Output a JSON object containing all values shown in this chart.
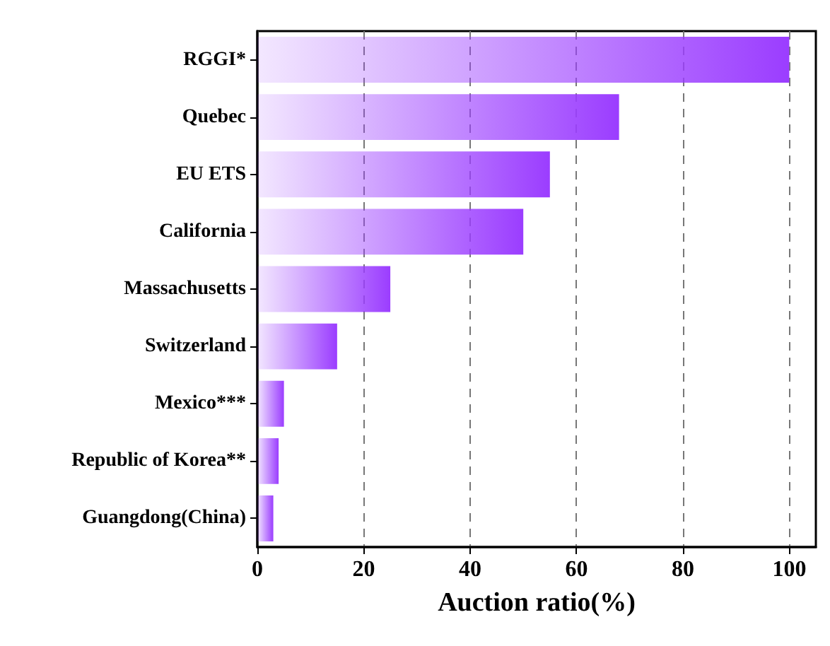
{
  "chart_data": {
    "type": "bar",
    "orientation": "horizontal",
    "xlabel": "Auction ratio(%)",
    "categories": [
      "RGGI*",
      "Quebec",
      "EU ETS",
      "California",
      "Massachusetts",
      "Switzerland",
      "Mexico***",
      "Republic of Korea**",
      "Guangdong(China)"
    ],
    "values": [
      100,
      68,
      55,
      50,
      25,
      15,
      5,
      4,
      3
    ],
    "color": "#9b3dff",
    "xlim": [
      0,
      105
    ],
    "xticks": [
      0,
      20,
      40,
      60,
      80,
      100
    ],
    "grid": "x"
  }
}
